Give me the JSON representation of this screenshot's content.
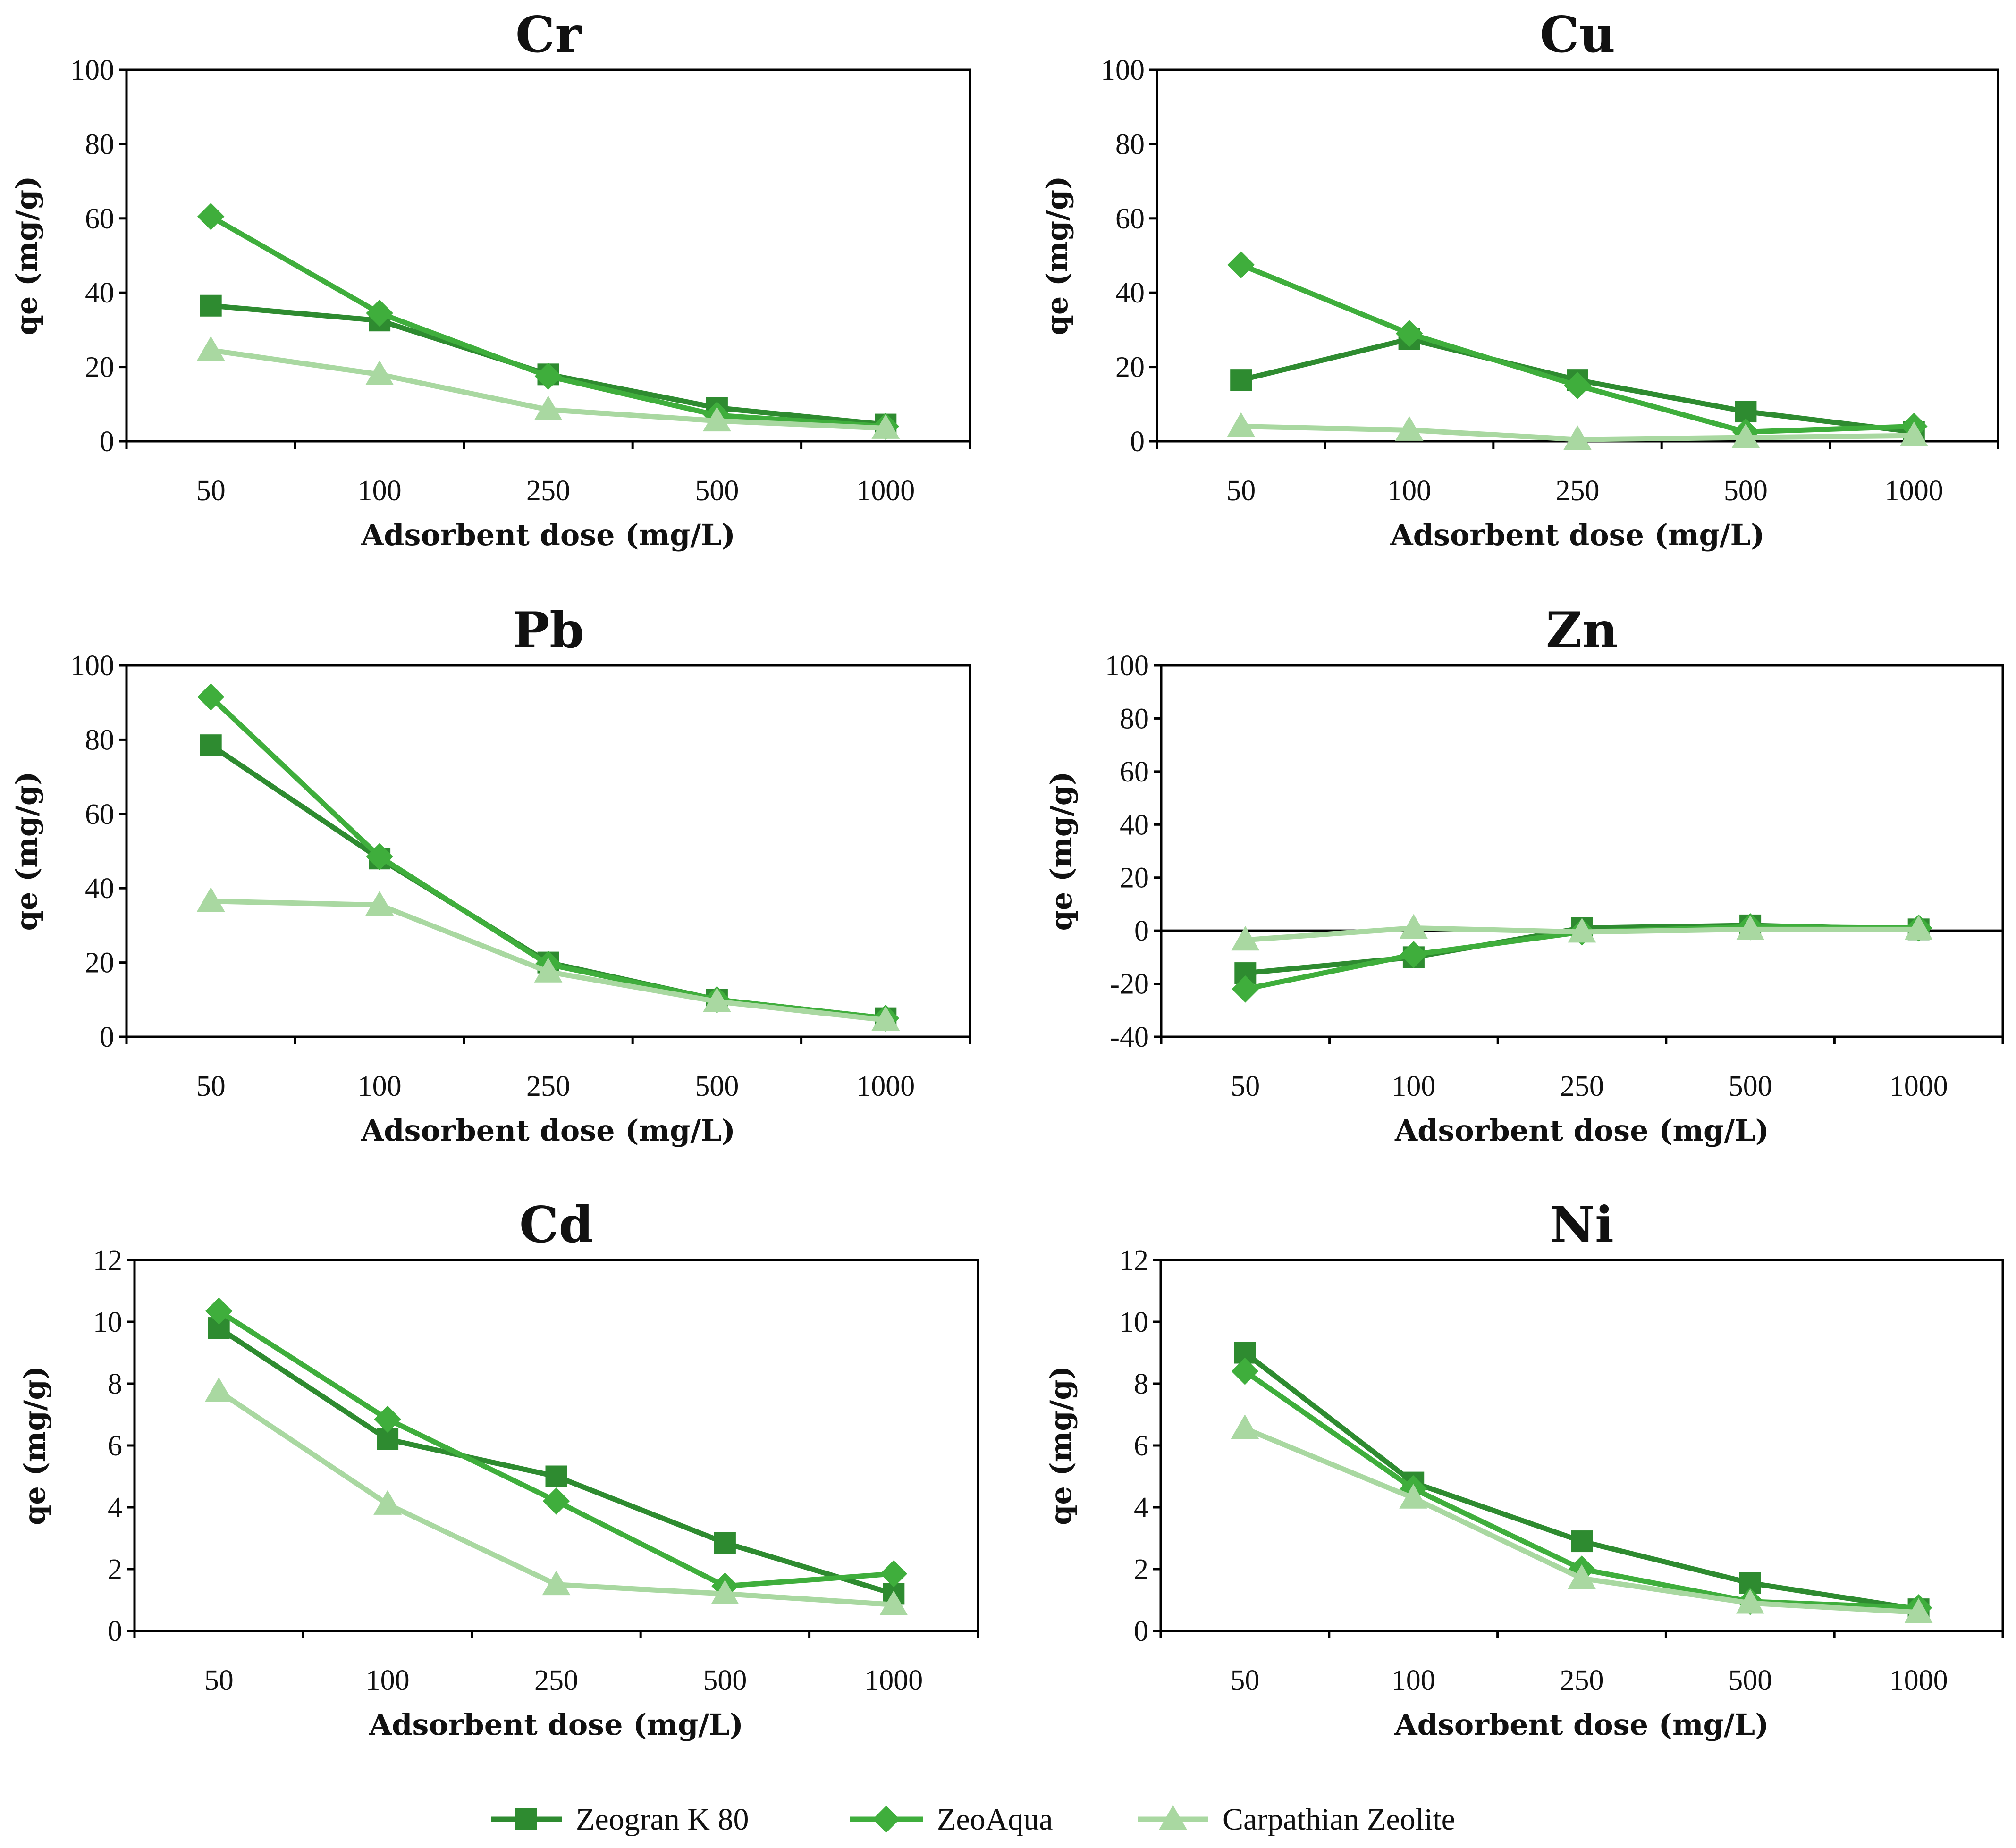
{
  "colors": {
    "zeogran": "#2e8b30",
    "zeoaqua": "#3fae3c",
    "carpathian": "#a9d8a1"
  },
  "legend": {
    "items": [
      {
        "label": "Zeogran K 80",
        "marker": "square",
        "color": "#2e8b30"
      },
      {
        "label": "ZeoAqua",
        "marker": "diamond",
        "color": "#3fae3c"
      },
      {
        "label": "Carpathian Zeolite",
        "marker": "triangle",
        "color": "#a9d8a1"
      }
    ]
  },
  "chart_data": [
    {
      "type": "line",
      "title": "Cr",
      "xlabel": "Adsorbent dose (mg/L)",
      "ylabel": "qe (mg/g)",
      "categories": [
        "50",
        "100",
        "250",
        "500",
        "1000"
      ],
      "ylim": [
        0,
        100
      ],
      "yticks": [
        0,
        20,
        40,
        60,
        80,
        100
      ],
      "series": [
        {
          "name": "Zeogran K 80",
          "values": [
            36.5,
            32.5,
            18,
            9,
            4.5
          ]
        },
        {
          "name": "ZeoAqua",
          "values": [
            60.5,
            34.5,
            17.5,
            7,
            4
          ]
        },
        {
          "name": "Carpathian Zeolite",
          "values": [
            24.5,
            18,
            8.5,
            5.5,
            3.5
          ]
        }
      ]
    },
    {
      "type": "line",
      "title": "Cu",
      "xlabel": "Adsorbent dose (mg/L)",
      "ylabel": "qe (mg/g)",
      "categories": [
        "50",
        "100",
        "250",
        "500",
        "1000"
      ],
      "ylim": [
        0,
        100
      ],
      "yticks": [
        0,
        20,
        40,
        60,
        80,
        100
      ],
      "series": [
        {
          "name": "Zeogran K 80",
          "values": [
            16.5,
            27.5,
            16.5,
            8,
            2.5
          ]
        },
        {
          "name": "ZeoAqua",
          "values": [
            47.5,
            29,
            15,
            2.5,
            4
          ]
        },
        {
          "name": "Carpathian Zeolite",
          "values": [
            4,
            3,
            0.5,
            1,
            1.5
          ]
        }
      ]
    },
    {
      "type": "line",
      "title": "Pb",
      "xlabel": "Adsorbent dose (mg/L)",
      "ylabel": "qe (mg/g)",
      "categories": [
        "50",
        "100",
        "250",
        "500",
        "1000"
      ],
      "ylim": [
        0,
        100
      ],
      "yticks": [
        0,
        20,
        40,
        60,
        80,
        100
      ],
      "series": [
        {
          "name": "Zeogran K 80",
          "values": [
            78.5,
            48,
            20,
            10,
            5
          ]
        },
        {
          "name": "ZeoAqua",
          "values": [
            91.5,
            48.5,
            19.5,
            10,
            5
          ]
        },
        {
          "name": "Carpathian Zeolite",
          "values": [
            36.5,
            35.5,
            17.5,
            9.5,
            4.5
          ]
        }
      ]
    },
    {
      "type": "line",
      "title": "Zn",
      "xlabel": "Adsorbent dose (mg/L)",
      "ylabel": "qe (mg/g)",
      "categories": [
        "50",
        "100",
        "250",
        "500",
        "1000"
      ],
      "ylim": [
        -40,
        100
      ],
      "yticks": [
        -40,
        -20,
        0,
        20,
        40,
        60,
        80,
        100
      ],
      "series": [
        {
          "name": "Zeogran K 80",
          "values": [
            -16,
            -10,
            1,
            2,
            0.5
          ]
        },
        {
          "name": "ZeoAqua",
          "values": [
            -22,
            -9,
            -0.5,
            1.5,
            1
          ]
        },
        {
          "name": "Carpathian Zeolite",
          "values": [
            -3.5,
            1,
            -0.5,
            0.5,
            0.5
          ]
        }
      ]
    },
    {
      "type": "line",
      "title": "Cd",
      "xlabel": "Adsorbent dose (mg/L)",
      "ylabel": "qe (mg/g)",
      "categories": [
        "50",
        "100",
        "250",
        "500",
        "1000"
      ],
      "ylim": [
        0,
        12
      ],
      "yticks": [
        0,
        2,
        4,
        6,
        8,
        10,
        12
      ],
      "series": [
        {
          "name": "Zeogran K 80",
          "values": [
            9.8,
            6.2,
            5.0,
            2.85,
            1.2
          ]
        },
        {
          "name": "ZeoAqua",
          "values": [
            10.35,
            6.85,
            4.2,
            1.45,
            1.85
          ]
        },
        {
          "name": "Carpathian Zeolite",
          "values": [
            7.75,
            4.1,
            1.5,
            1.2,
            0.85
          ]
        }
      ]
    },
    {
      "type": "line",
      "title": "Ni",
      "xlabel": "Adsorbent dose (mg/L)",
      "ylabel": "qe (mg/g)",
      "categories": [
        "50",
        "100",
        "250",
        "500",
        "1000"
      ],
      "ylim": [
        0,
        12
      ],
      "yticks": [
        0,
        2,
        4,
        6,
        8,
        10,
        12
      ],
      "series": [
        {
          "name": "Zeogran K 80",
          "values": [
            9.0,
            4.8,
            2.9,
            1.55,
            0.7
          ]
        },
        {
          "name": "ZeoAqua",
          "values": [
            8.4,
            4.6,
            2.0,
            0.95,
            0.75
          ]
        },
        {
          "name": "Carpathian Zeolite",
          "values": [
            6.55,
            4.3,
            1.7,
            0.9,
            0.6
          ]
        }
      ]
    }
  ]
}
